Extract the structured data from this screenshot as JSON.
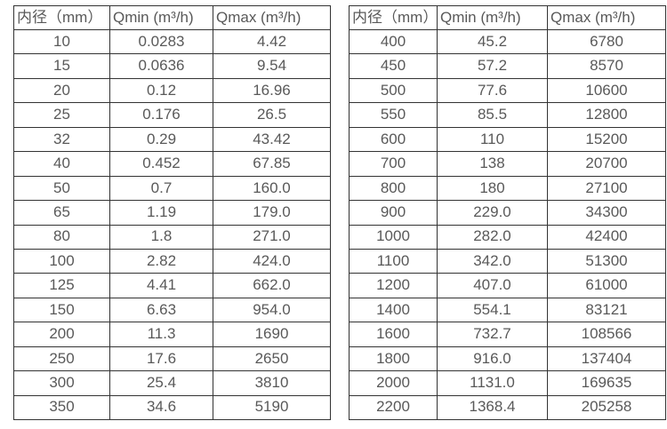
{
  "colors": {
    "background": "#ffffff",
    "text": "#595959",
    "table_border": "#333333"
  },
  "chart_data": [
    {
      "type": "table",
      "title": "",
      "columns": [
        "内径（mm）",
        "Qmin (m³/h)",
        "Qmax (m³/h)"
      ],
      "rows": [
        [
          "10",
          "0.0283",
          "4.42"
        ],
        [
          "15",
          "0.0636",
          "9.54"
        ],
        [
          "20",
          "0.12",
          "16.96"
        ],
        [
          "25",
          "0.176",
          "26.5"
        ],
        [
          "32",
          "0.29",
          "43.42"
        ],
        [
          "40",
          "0.452",
          "67.85"
        ],
        [
          "50",
          "0.7",
          "160.0"
        ],
        [
          "65",
          "1.19",
          "179.0"
        ],
        [
          "80",
          "1.8",
          "271.0"
        ],
        [
          "100",
          "2.82",
          "424.0"
        ],
        [
          "125",
          "4.41",
          "662.0"
        ],
        [
          "150",
          "6.63",
          "954.0"
        ],
        [
          "200",
          "11.3",
          "1690"
        ],
        [
          "250",
          "17.6",
          "2650"
        ],
        [
          "300",
          "25.4",
          "3810"
        ],
        [
          "350",
          "34.6",
          "5190"
        ]
      ]
    },
    {
      "type": "table",
      "title": "",
      "columns": [
        "内径（mm）",
        "Qmin (m³/h)",
        "Qmax (m³/h)"
      ],
      "rows": [
        [
          "400",
          "45.2",
          "6780"
        ],
        [
          "450",
          "57.2",
          "8570"
        ],
        [
          "500",
          "77.6",
          "10600"
        ],
        [
          "550",
          "85.5",
          "12800"
        ],
        [
          "600",
          "110",
          "15200"
        ],
        [
          "700",
          "138",
          "20700"
        ],
        [
          "800",
          "180",
          "27100"
        ],
        [
          "900",
          "229.0",
          "34300"
        ],
        [
          "1000",
          "282.0",
          "42400"
        ],
        [
          "1100",
          "342.0",
          "51300"
        ],
        [
          "1200",
          "407.0",
          "61000"
        ],
        [
          "1400",
          "554.1",
          "83121"
        ],
        [
          "1600",
          "732.7",
          "108566"
        ],
        [
          "1800",
          "916.0",
          "137404"
        ],
        [
          "2000",
          "1131.0",
          "169635"
        ],
        [
          "2200",
          "1368.4",
          "205258"
        ]
      ]
    }
  ]
}
